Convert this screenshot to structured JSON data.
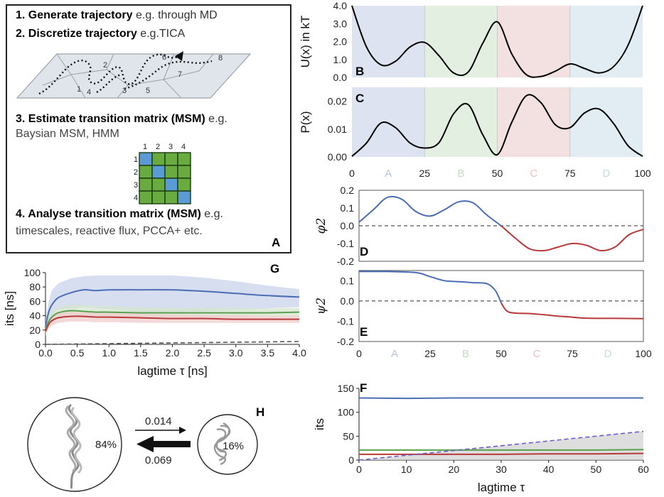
{
  "panelA": {
    "letter": "A",
    "steps": [
      {
        "bold": "1. Generate trajectory",
        "rest": " e.g. through MD"
      },
      {
        "bold": "2. Discretize trajectory",
        "rest": " e.g.TICA"
      },
      {
        "bold": "3. Estimate transition matrix (MSM)",
        "rest": " e.g."
      },
      {
        "bold": "4. Analyse transition matrix (MSM)",
        "rest": " e.g."
      }
    ],
    "step3_line2": "Baysian MSM, HMM",
    "step4_line2": "timescales, reactive flux, PCCA+ etc.",
    "state_labels": [
      "1",
      "2",
      "3",
      "4",
      "5",
      "6",
      "7",
      "8"
    ],
    "matrix_labels": [
      "1",
      "2",
      "3",
      "4"
    ],
    "colors": {
      "matrix_on": "#5b9bd5",
      "matrix_off": "#6aab3f",
      "plane": "#dfe5ea"
    }
  },
  "regions": {
    "labels": [
      "A",
      "B",
      "C",
      "D"
    ],
    "colors": [
      "#dde3f0",
      "#e3efe1",
      "#f3e1e1",
      "#e1ecf3"
    ],
    "label_colors": [
      "#b8c4dc",
      "#c4dcbf",
      "#ecbfbf",
      "#c4d8e6"
    ]
  },
  "panelH": {
    "letter": "H",
    "pop_left": "84%",
    "pop_right": "16%",
    "rate_forward": "0.014",
    "rate_backward": "0.069"
  },
  "chart_data": [
    {
      "id": "B",
      "type": "line",
      "title": "",
      "xlabel": "",
      "ylabel": "U(x) in kT",
      "xlim": [
        0,
        100
      ],
      "ylim": [
        0,
        4
      ],
      "yticks": [
        "0.0",
        "1.0",
        "2.0",
        "3.0",
        "4.0"
      ],
      "series": [
        {
          "color": "#000000",
          "x": [
            0,
            5,
            10,
            15,
            20,
            25,
            30,
            35,
            40,
            45,
            50,
            55,
            60,
            65,
            70,
            75,
            80,
            85,
            90,
            95,
            100
          ],
          "y": [
            4.0,
            1.7,
            0.7,
            0.9,
            1.7,
            1.95,
            1.2,
            0.25,
            0.3,
            1.9,
            3.1,
            1.3,
            0.15,
            0.05,
            0.35,
            0.75,
            0.5,
            0.25,
            0.6,
            1.8,
            4.0
          ]
        }
      ]
    },
    {
      "id": "C",
      "type": "line",
      "title": "",
      "xlabel": "",
      "ylabel": "P(x)",
      "xlim": [
        0,
        100
      ],
      "ylim": [
        0,
        0.025
      ],
      "xticks": [
        "0",
        "25",
        "50",
        "75",
        "100"
      ],
      "yticks": [
        "0.00",
        "0.01",
        "0.02"
      ],
      "region_labels": [
        "A",
        "B",
        "C",
        "D"
      ],
      "series": [
        {
          "color": "#000000",
          "x": [
            0,
            5,
            10,
            15,
            20,
            25,
            30,
            35,
            40,
            45,
            50,
            55,
            60,
            65,
            70,
            75,
            80,
            85,
            90,
            95,
            100
          ],
          "y": [
            0.0002,
            0.005,
            0.0122,
            0.0105,
            0.005,
            0.0032,
            0.0052,
            0.0155,
            0.0188,
            0.008,
            0.0008,
            0.0125,
            0.022,
            0.0195,
            0.0115,
            0.0105,
            0.0158,
            0.0172,
            0.012,
            0.004,
            0.0002
          ]
        }
      ]
    },
    {
      "id": "D",
      "type": "line",
      "title": "",
      "xlabel": "",
      "ylabel": "φ2",
      "xlim": [
        0,
        100
      ],
      "ylim": [
        -0.2,
        0.2
      ],
      "yticks": [
        "-0.2",
        "-0.1",
        "0.0",
        "0.1",
        "0.2"
      ],
      "reference_line": 0,
      "series": [
        {
          "color": "#4a6db5",
          "x": [
            0,
            5,
            10,
            15,
            20,
            25,
            30,
            35,
            40,
            45,
            50
          ],
          "y": [
            0.02,
            0.09,
            0.16,
            0.15,
            0.08,
            0.055,
            0.09,
            0.135,
            0.13,
            0.06,
            0.0
          ]
        },
        {
          "color": "#b83a3a",
          "x": [
            50,
            55,
            60,
            65,
            70,
            75,
            80,
            85,
            90,
            95,
            100
          ],
          "y": [
            0.0,
            -0.07,
            -0.13,
            -0.14,
            -0.12,
            -0.1,
            -0.11,
            -0.14,
            -0.12,
            -0.05,
            -0.02
          ]
        }
      ]
    },
    {
      "id": "E",
      "type": "line",
      "title": "",
      "xlabel": "",
      "ylabel": "ψ2",
      "xlim": [
        0,
        100
      ],
      "ylim": [
        -0.2,
        0.15
      ],
      "xticks": [
        "0",
        "25",
        "50",
        "75",
        "100"
      ],
      "yticks": [
        "-0.2",
        "-0.1",
        "0.0",
        "0.1"
      ],
      "reference_line": 0,
      "region_labels": [
        "A",
        "B",
        "C",
        "D"
      ],
      "series": [
        {
          "color": "#4a6db5",
          "x": [
            0,
            10,
            20,
            25,
            30,
            35,
            40,
            45,
            48,
            50
          ],
          "y": [
            0.145,
            0.145,
            0.14,
            0.12,
            0.1,
            0.095,
            0.09,
            0.085,
            0.05,
            -0.01
          ]
        },
        {
          "color": "#b83a3a",
          "x": [
            50,
            52,
            55,
            60,
            65,
            70,
            75,
            80,
            90,
            100
          ],
          "y": [
            -0.01,
            -0.05,
            -0.06,
            -0.062,
            -0.068,
            -0.075,
            -0.08,
            -0.085,
            -0.086,
            -0.087
          ]
        }
      ]
    },
    {
      "id": "F",
      "type": "line",
      "title": "",
      "xlabel": "lagtime τ",
      "ylabel": "its",
      "xlim": [
        0,
        60
      ],
      "ylim": [
        0,
        150
      ],
      "xticks": [
        "0",
        "10",
        "20",
        "30",
        "40",
        "50",
        "60"
      ],
      "yticks": [
        "0",
        "50",
        "100",
        "150"
      ],
      "series": [
        {
          "color": "#4a6db5",
          "x": [
            0,
            10,
            20,
            30,
            40,
            50,
            60
          ],
          "y": [
            130,
            129,
            130,
            130,
            130,
            130,
            130
          ]
        },
        {
          "color": "#5aa04f",
          "x": [
            0,
            10,
            20,
            30,
            40,
            50,
            60
          ],
          "y": [
            21,
            21,
            21,
            21,
            21,
            21,
            22
          ]
        },
        {
          "color": "#b83a3a",
          "x": [
            0,
            10,
            20,
            30,
            40,
            50,
            60
          ],
          "y": [
            12,
            12,
            12,
            12,
            13,
            13,
            14
          ]
        },
        {
          "color": "#6a5acd",
          "dashed": true,
          "fill": "#d0d0d0",
          "x": [
            0,
            60
          ],
          "y": [
            0,
            60
          ]
        }
      ]
    },
    {
      "id": "G",
      "type": "line",
      "title": "",
      "xlabel": "lagtime τ [ns]",
      "ylabel": "its [ns]",
      "xlim": [
        0,
        4
      ],
      "ylim": [
        0,
        100
      ],
      "xticks": [
        "0.0",
        "0.5",
        "1.0",
        "1.5",
        "2.0",
        "2.5",
        "3.0",
        "3.5",
        "4.0"
      ],
      "yticks": [
        "0",
        "20",
        "40",
        "60",
        "80",
        "100"
      ],
      "series": [
        {
          "color": "#4a6db5",
          "band": "#c9d3ea",
          "x": [
            0,
            0.05,
            0.1,
            0.2,
            0.4,
            0.6,
            0.8,
            1.0,
            1.5,
            2.0,
            2.5,
            3.0,
            3.5,
            4.0
          ],
          "y": [
            25,
            45,
            55,
            65,
            72,
            76,
            75,
            76,
            76,
            76,
            74,
            71,
            68,
            66
          ],
          "lo": [
            15,
            30,
            40,
            48,
            50,
            52,
            50,
            49,
            45,
            44,
            46,
            48,
            50,
            52
          ],
          "hi": [
            35,
            60,
            75,
            85,
            92,
            95,
            96,
            96,
            96,
            96,
            93,
            88,
            82,
            77
          ]
        },
        {
          "color": "#5aa04f",
          "band": "#d4e6cf",
          "x": [
            0,
            0.05,
            0.1,
            0.2,
            0.4,
            0.6,
            0.8,
            1.0,
            1.5,
            2.0,
            2.5,
            3.0,
            3.5,
            4.0
          ],
          "y": [
            20,
            32,
            38,
            44,
            47,
            46,
            45,
            45,
            44,
            44,
            44,
            44,
            44,
            45
          ],
          "lo": [
            14,
            24,
            30,
            36,
            40,
            40,
            40,
            39,
            38,
            38,
            38,
            38,
            39,
            39
          ],
          "hi": [
            26,
            40,
            46,
            52,
            55,
            55,
            54,
            53,
            52,
            51,
            51,
            51,
            50,
            51
          ]
        },
        {
          "color": "#b83a3a",
          "band": "#f0cccc",
          "x": [
            0,
            0.05,
            0.1,
            0.2,
            0.4,
            0.6,
            0.8,
            1.0,
            1.5,
            2.0,
            2.5,
            3.0,
            3.5,
            4.0
          ],
          "y": [
            18,
            28,
            33,
            37,
            39,
            39,
            38,
            38,
            37,
            36,
            36,
            35,
            35,
            35
          ],
          "lo": [
            12,
            22,
            26,
            30,
            32,
            32,
            31,
            31,
            30,
            30,
            30,
            30,
            30,
            30
          ],
          "hi": [
            24,
            34,
            40,
            44,
            46,
            45,
            45,
            44,
            43,
            42,
            41,
            41,
            40,
            40
          ]
        },
        {
          "color": "#555555",
          "dashed": true,
          "x": [
            0,
            4
          ],
          "y": [
            0,
            4
          ]
        }
      ]
    }
  ]
}
